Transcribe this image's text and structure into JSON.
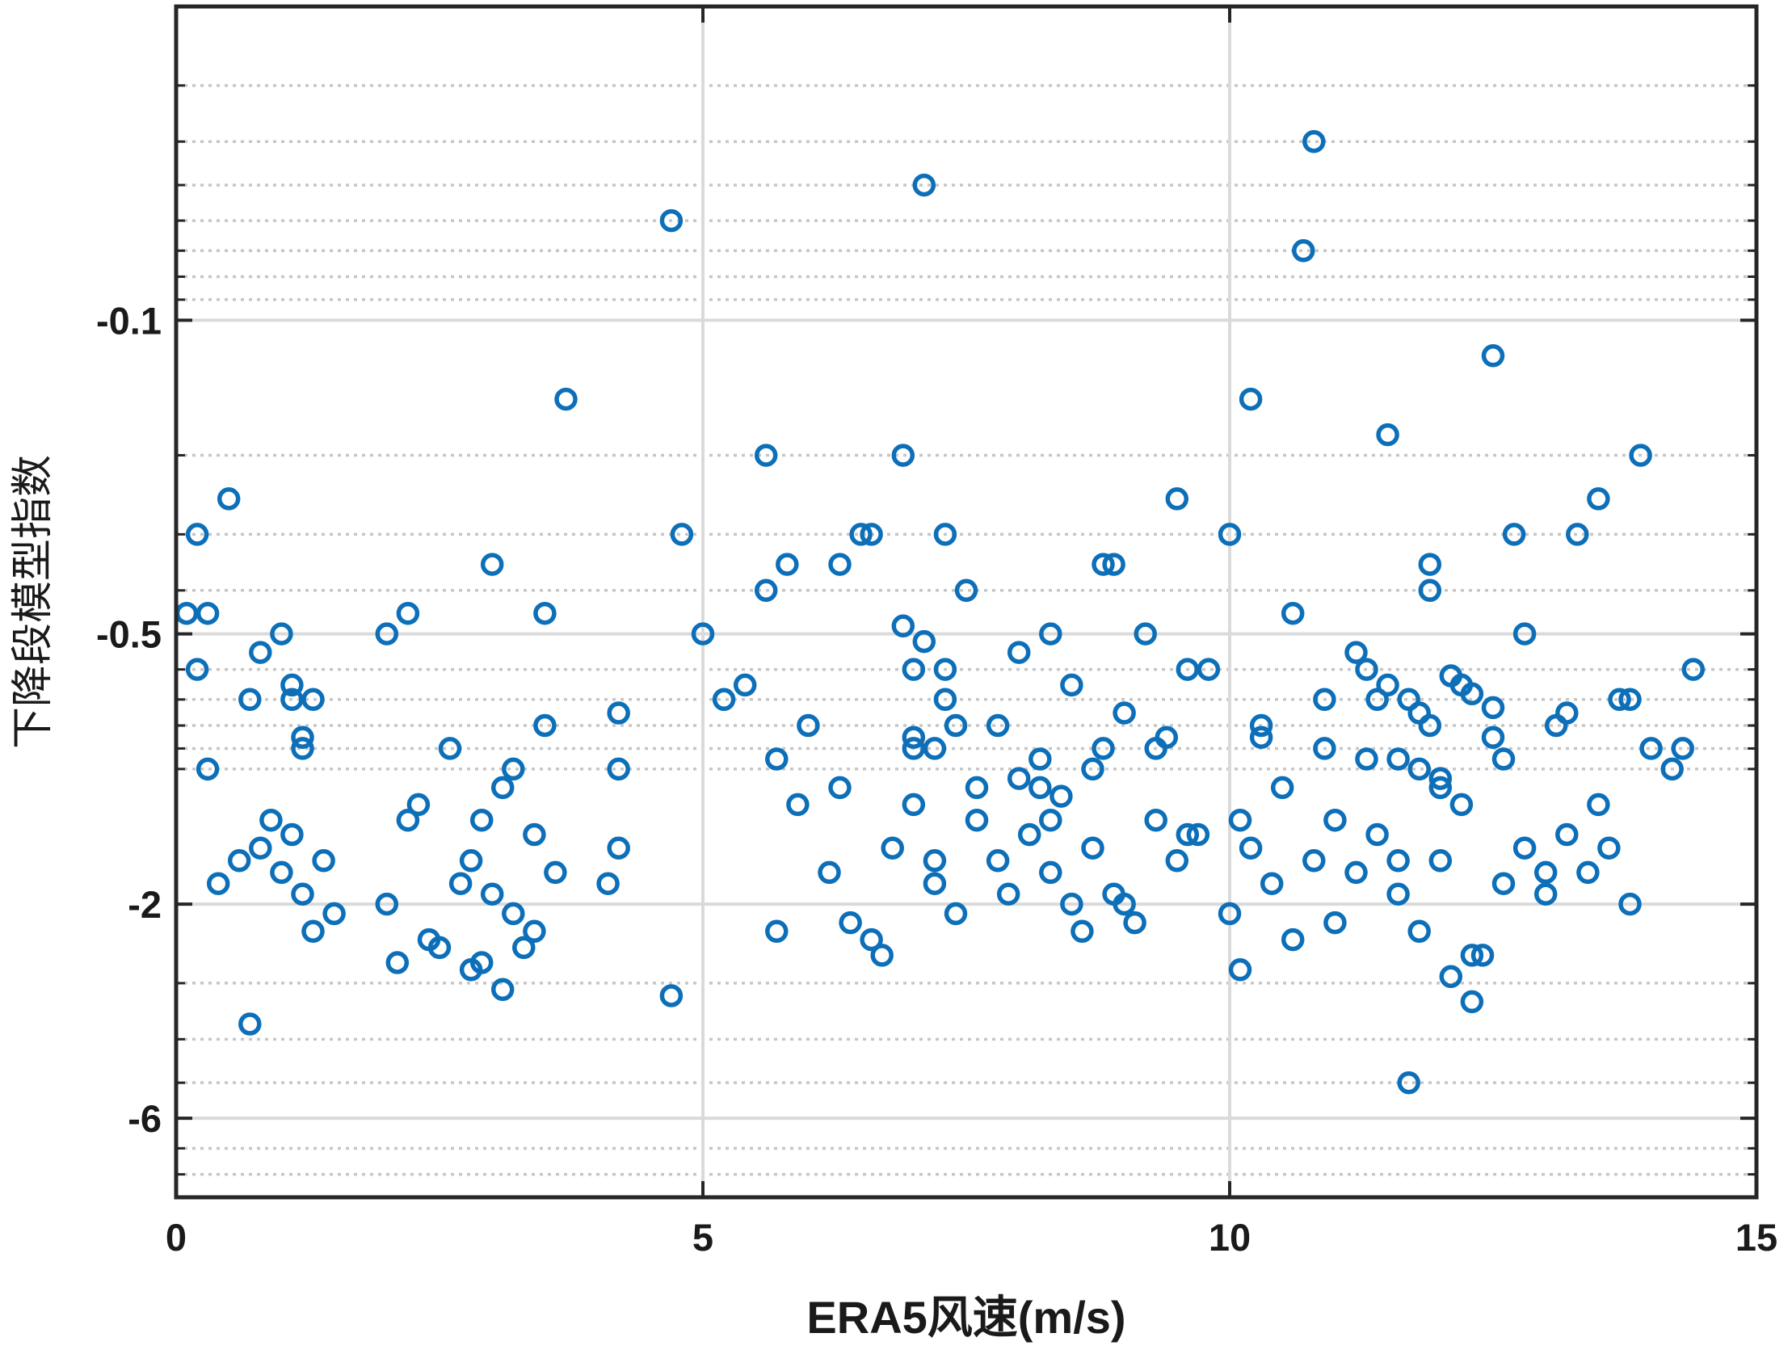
{
  "chart_data": {
    "type": "scatter",
    "xlabel": "ERA5风速(m/s)",
    "ylabel": "下降段模型指数",
    "xlim": [
      0,
      15
    ],
    "xticks": [
      0,
      5,
      10,
      15
    ],
    "xtick_labels": [
      "0",
      "5",
      "10",
      "15"
    ],
    "y_scale": "negative-log",
    "ylim": [
      -0.02,
      -9
    ],
    "yticks": [
      -0.1,
      -0.5,
      -2,
      -6
    ],
    "ytick_labels": [
      "-0.1",
      "-0.5",
      "-2",
      "-6"
    ],
    "grid": true,
    "minor_grid": "dotted",
    "marker": "circle",
    "color": "#0d6fb8",
    "series": [
      {
        "x": [
          0.1,
          0.2,
          0.3,
          0.5,
          0.6,
          0.7,
          0.9,
          1.0,
          1.1,
          1.1,
          1.2,
          1.3,
          1.5,
          2.0,
          2.1,
          2.2,
          2.3,
          2.5,
          3.0,
          3.1,
          3.2,
          3.4,
          3.5,
          3.7,
          4.1,
          4.2,
          4.7,
          4.8,
          5.0,
          5.2,
          5.4,
          5.6,
          5.8,
          6.0,
          6.3,
          6.5,
          6.7,
          6.9,
          7.0,
          7.1,
          7.2,
          7.3,
          7.5,
          7.6,
          7.8,
          7.9,
          8.0,
          8.2,
          8.3,
          8.5,
          8.6,
          8.8,
          8.9,
          9.0,
          9.2,
          9.3,
          9.5,
          9.6,
          9.8,
          10.0,
          10.1,
          10.2,
          10.3,
          10.5,
          10.6,
          10.8,
          10.9,
          11.0,
          11.2,
          11.3,
          11.5,
          11.6,
          11.8,
          11.9,
          12.0,
          12.2,
          12.3,
          12.5,
          12.6,
          12.8,
          13.0,
          13.1,
          13.3,
          13.5,
          13.7,
          13.9,
          14.0,
          14.2,
          14.4,
          0.2,
          0.4,
          0.8,
          1.0,
          1.2,
          1.4,
          2.0,
          2.2,
          2.4,
          2.7,
          2.8,
          2.9,
          3.0,
          3.2,
          3.3,
          3.4,
          3.6,
          4.2,
          5.7,
          5.9,
          6.2,
          6.4,
          6.6,
          6.8,
          7.0,
          7.2,
          7.4,
          7.6,
          7.8,
          8.1,
          8.3,
          8.5,
          8.7,
          8.9,
          9.1,
          9.3,
          9.5,
          9.7,
          10.0,
          10.2,
          10.4,
          10.6,
          10.8,
          11.0,
          11.2,
          11.4,
          11.6,
          11.8,
          12.0,
          12.2,
          12.4,
          12.6,
          12.8,
          13.0,
          13.2,
          13.4,
          13.6,
          13.8,
          10.1,
          12.3,
          12.1,
          11.7,
          2.8,
          0.7,
          1.3,
          4.7,
          5.6,
          6.6,
          7.3,
          8.8,
          9.6,
          10.7,
          11.9,
          12.7,
          13.5,
          0.3,
          0.8,
          1.1,
          1.2,
          2.6,
          2.9,
          3.1,
          3.5,
          4.2,
          5.7,
          6.3,
          7.0,
          7.4,
          8.3,
          8.7,
          9.0,
          9.4,
          10.3,
          10.9,
          11.4,
          11.9,
          12.5,
          13.2,
          13.8,
          14.3,
          6.9,
          7.1,
          7.3,
          11.3,
          11.5,
          11.7,
          12.1,
          12.3,
          12.5,
          8.0,
          8.2,
          8.4,
          7.0,
          7.2,
          11.6,
          11.8,
          12.0
        ],
        "y": [
          -0.45,
          -0.3,
          -1.0,
          -0.25,
          -1.6,
          -0.7,
          -1.3,
          -0.5,
          -0.65,
          -1.4,
          -0.9,
          -0.7,
          -2.1,
          -0.5,
          -2.7,
          -0.45,
          -1.2,
          -2.5,
          -0.35,
          -3.1,
          -1.0,
          -1.4,
          -0.45,
          -0.15,
          -1.8,
          -0.75,
          -0.06,
          -0.3,
          -0.5,
          -0.7,
          -0.65,
          -0.2,
          -0.35,
          -0.8,
          -1.1,
          -0.3,
          -2.6,
          -0.2,
          -0.9,
          -0.05,
          -1.6,
          -0.7,
          -0.4,
          -1.1,
          -0.8,
          -1.9,
          -0.55,
          -0.95,
          -1.3,
          -0.65,
          -2.3,
          -0.9,
          -0.35,
          -2.0,
          -0.5,
          -0.9,
          -0.25,
          -1.4,
          -0.6,
          -0.3,
          -2.8,
          -0.15,
          -0.8,
          -1.1,
          -0.45,
          -0.04,
          -0.7,
          -1.3,
          -0.55,
          -0.95,
          -0.18,
          -1.6,
          -0.75,
          -0.4,
          -1.1,
          -0.65,
          -2.6,
          -0.12,
          -0.95,
          -0.5,
          -1.7,
          -0.8,
          -0.3,
          -1.2,
          -0.7,
          -0.2,
          -0.9,
          -1.0,
          -0.6,
          -0.6,
          -1.8,
          -1.5,
          -1.7,
          -1.9,
          -1.6,
          -2.0,
          -1.3,
          -2.4,
          -1.8,
          -1.6,
          -2.7,
          -1.9,
          -2.1,
          -2.5,
          -2.3,
          -1.7,
          -1.5,
          -2.3,
          -1.2,
          -1.7,
          -2.2,
          -2.4,
          -1.5,
          -1.2,
          -1.8,
          -2.1,
          -1.3,
          -1.6,
          -1.4,
          -1.7,
          -2.0,
          -1.5,
          -1.9,
          -2.2,
          -1.3,
          -1.6,
          -1.4,
          -2.1,
          -1.5,
          -1.8,
          -2.4,
          -1.6,
          -2.2,
          -1.7,
          -1.4,
          -1.9,
          -2.3,
          -1.6,
          -1.2,
          -2.6,
          -1.8,
          -1.5,
          -1.9,
          -1.4,
          -1.7,
          -1.5,
          -2.0,
          -1.3,
          -3.3,
          -2.9,
          -5.0,
          -2.8,
          -3.7,
          -2.3,
          -3.2,
          -0.4,
          -0.3,
          -0.3,
          -0.35,
          -0.6,
          -0.07,
          -0.35,
          -0.3,
          -0.25,
          -0.45,
          -0.55,
          -0.7,
          -0.85,
          -0.9,
          -1.3,
          -1.1,
          -0.8,
          -1.0,
          -0.95,
          -0.35,
          -0.6,
          -0.8,
          -0.5,
          -1.0,
          -0.75,
          -0.85,
          -0.85,
          -0.9,
          -0.7,
          -0.8,
          -0.85,
          -0.75,
          -0.7,
          -0.9,
          -0.48,
          -0.52,
          -0.6,
          -0.6,
          -0.65,
          -0.7,
          -0.62,
          -0.68,
          -0.73,
          -1.05,
          -1.1,
          -1.15,
          -0.85,
          -0.9,
          -0.95,
          -1.0,
          -1.05
        ]
      }
    ]
  }
}
